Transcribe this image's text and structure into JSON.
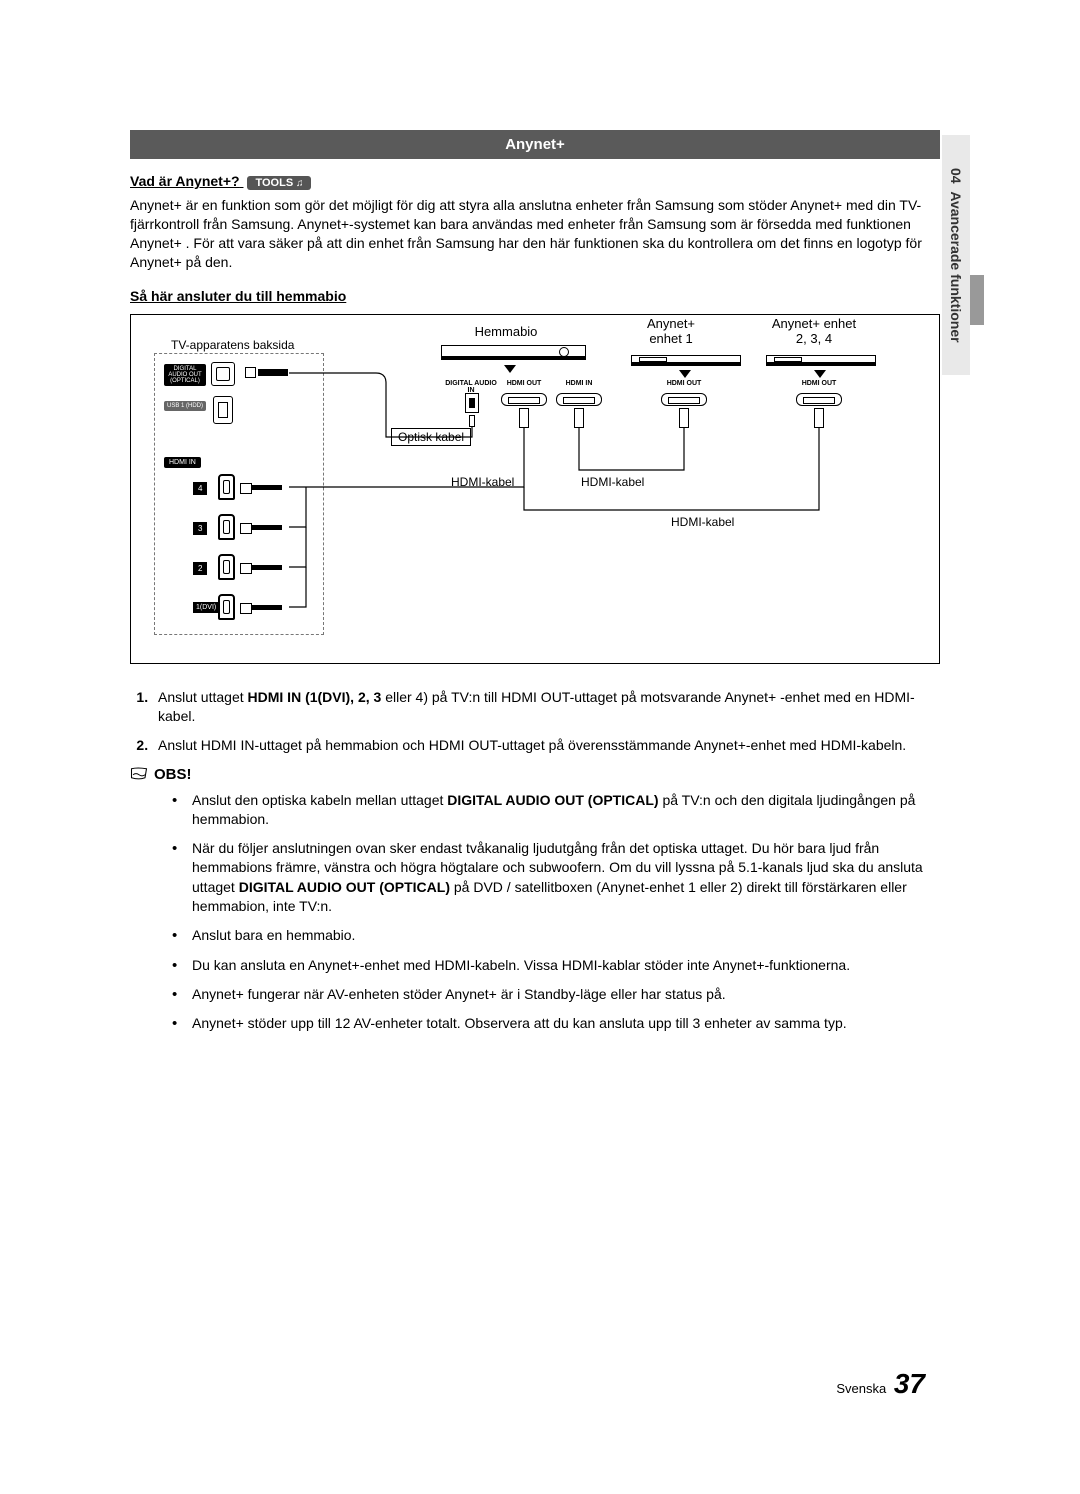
{
  "side": {
    "chapter": "04",
    "title": "Avancerade funktioner"
  },
  "section_title": "Anynet+",
  "h1": {
    "text": "Vad är Anynet+?",
    "tools_label": "TOOLS",
    "tools_icon": "t"
  },
  "intro": "Anynet+ är en funktion som gör det möjligt för dig att styra alla anslutna enheter från Samsung som stöder Anynet+ med din TV-fjärrkontroll från Samsung. Anynet+-systemet kan bara användas med enheter från Samsung som är försedda med funktionen Anynet+ . För att vara säker på att din enhet från Samsung har den här funktionen ska du kontrollera om det finns en logotyp för Anynet+ på den.",
  "h2": "Så här ansluter du till hemmabio",
  "diagram": {
    "tv_label": "TV-apparatens baksida",
    "ports": {
      "optical_label": "DIGITAL\nAUDIO OUT\n(OPTICAL)",
      "usb_label": "USB 1\n(HDD)",
      "hdmi_in_label": "HDMI IN",
      "hdmi_nums": [
        "4",
        "3",
        "2",
        "1(DVI)"
      ]
    },
    "devices": {
      "hemmabio": "Hemmabio",
      "enhet1": "Anynet+\nenhet 1",
      "enhet234": "Anynet+ enhet\n2, 3, 4"
    },
    "port_labels": {
      "dig_audio_in": "DIGITAL AUDIO IN",
      "hdmi_out": "HDMI OUT",
      "hdmi_in": "HDMI IN"
    },
    "wire_labels": {
      "optisk": "Optisk kabel",
      "hdmi": "HDMI-kabel"
    }
  },
  "steps": [
    {
      "pre": "Anslut uttaget ",
      "bold": "HDMI IN (1(DVI), 2, 3",
      "post": " eller 4) på TV:n till HDMI OUT-uttaget på motsvarande Anynet+ -enhet med en HDMI-kabel."
    },
    {
      "pre": "",
      "bold": "",
      "post": "Anslut HDMI IN-uttaget på hemmabion och HDMI OUT-uttaget på överensstämmande Anynet+-enhet med HDMI-kabeln."
    }
  ],
  "obs": "OBS!",
  "notes": [
    {
      "segments": [
        {
          "t": "Anslut den optiska kabeln mellan uttaget "
        },
        {
          "t": "DIGITAL AUDIO OUT (OPTICAL)",
          "b": true
        },
        {
          "t": " på TV:n och den digitala ljudingången på hemmabion."
        }
      ]
    },
    {
      "segments": [
        {
          "t": "När du följer anslutningen ovan sker endast tvåkanalig ljudutgång från det optiska uttaget. Du hör bara ljud från hemmabions främre, vänstra och högra högtalare och subwoofern. Om du vill lyssna på 5.1-kanals ljud ska du ansluta uttaget "
        },
        {
          "t": "DIGITAL AUDIO OUT (OPTICAL)",
          "b": true
        },
        {
          "t": " på DVD / satellitboxen (Anynet-enhet 1 eller 2) direkt till förstärkaren eller hemmabion, inte TV:n."
        }
      ]
    },
    {
      "segments": [
        {
          "t": "Anslut bara en hemmabio."
        }
      ]
    },
    {
      "segments": [
        {
          "t": "Du kan ansluta en Anynet+-enhet med HDMI-kabeln. Vissa HDMI-kablar stöder inte Anynet+-funktionerna."
        }
      ]
    },
    {
      "segments": [
        {
          "t": "Anynet+ fungerar när AV-enheten stöder Anynet+ är i Standby-läge eller har status på."
        }
      ]
    },
    {
      "segments": [
        {
          "t": "Anynet+ stöder upp till 12 AV-enheter totalt. Observera att du kan ansluta upp till 3 enheter av samma typ."
        }
      ]
    }
  ],
  "footer": {
    "lang": "Svenska",
    "page": "37"
  }
}
